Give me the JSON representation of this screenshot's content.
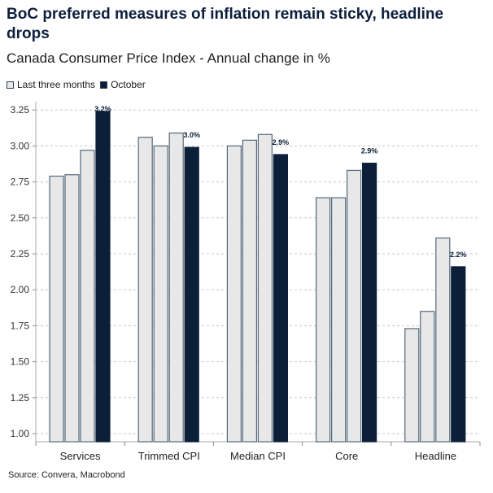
{
  "chart_data": {
    "type": "bar",
    "title": "BoC preferred measures of inflation remain sticky, headline drops",
    "subtitle": "Canada Consumer Price Index - Annual change in %",
    "categories": [
      "Services",
      "Trimmed CPI",
      "Median CPI",
      "Core",
      "Headline"
    ],
    "series": [
      {
        "name": "Last three months",
        "values": [
          [
            2.79,
            2.8,
            2.97
          ],
          [
            3.06,
            3.0,
            3.09
          ],
          [
            3.0,
            3.04,
            3.08
          ],
          [
            2.64,
            2.64,
            2.83
          ],
          [
            1.73,
            1.85,
            2.36
          ]
        ],
        "color": "#e8e8e8"
      },
      {
        "name": "October",
        "values": [
          3.24,
          2.99,
          2.94,
          2.88,
          2.16
        ],
        "color": "#0b1f38"
      }
    ],
    "data_labels": [
      "3.2%",
      "3.0%",
      "2.9%",
      "2.9%",
      "2.2%"
    ],
    "yticks": [
      "1.00",
      "1.25",
      "1.50",
      "1.75",
      "2.00",
      "2.25",
      "2.50",
      "2.75",
      "3.00",
      "3.25"
    ],
    "ylim": [
      1.0,
      3.3
    ],
    "grid": true,
    "legend": "top-left",
    "source": "Source: Convera, Macrobond"
  }
}
